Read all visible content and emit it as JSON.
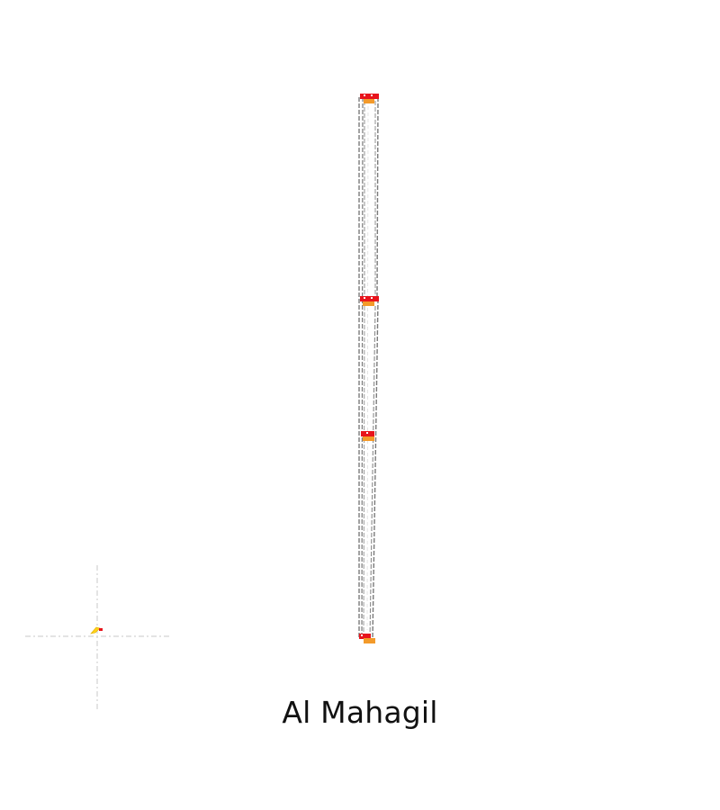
{
  "map": {
    "place_label": "Al Mahagil",
    "colors": {
      "road_outline": "#777777",
      "road_inner": "#c8c8c8",
      "stop_marker_red": "#e8141c",
      "stop_marker_orange": "#f39a2a",
      "crosshair": "#d0d0d0",
      "location_marker": "#ffd21a",
      "background": "#ffffff"
    },
    "icons": {
      "stop_marker": "station-marker-icon",
      "crosshair": "crosshair-icon",
      "location_marker": "location-marker-icon"
    }
  }
}
